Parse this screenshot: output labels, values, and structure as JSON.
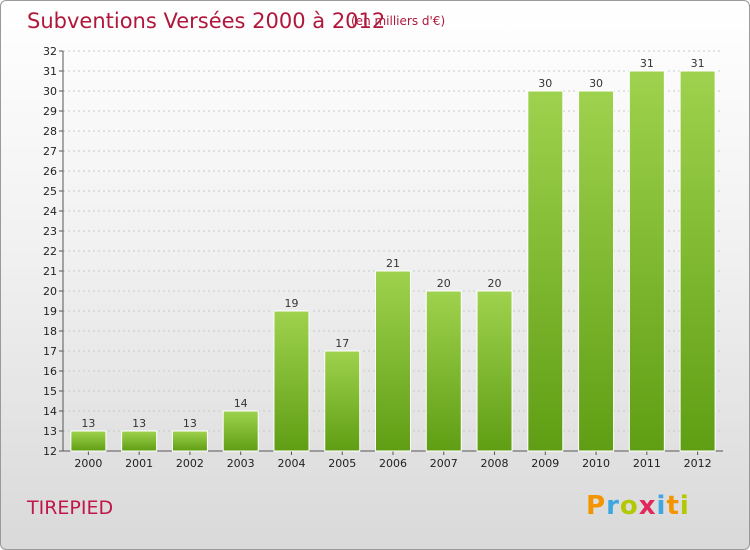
{
  "page": {
    "title": "Subventions Versées 2000 à 2012",
    "units": "(en milliers d'€)",
    "commune": "TIREPIED",
    "brand": [
      "P",
      "r",
      "o",
      "x",
      "i",
      "t",
      "i"
    ]
  },
  "colors": {
    "title": "#b0173a",
    "bar_top": "#9fd24e",
    "bar_bottom": "#5f9e14",
    "grid": "#c8c8c8"
  },
  "chart_data": {
    "type": "bar",
    "title": "Subventions Versées 2000 à 2012",
    "subtitle": "(en milliers d'€)",
    "xlabel": "",
    "ylabel": "",
    "categories": [
      "2000",
      "2001",
      "2002",
      "2003",
      "2004",
      "2005",
      "2006",
      "2007",
      "2008",
      "2009",
      "2010",
      "2011",
      "2012"
    ],
    "values": [
      13,
      13,
      13,
      14,
      19,
      17,
      21,
      20,
      20,
      30,
      30,
      31,
      31
    ],
    "ylim": [
      12,
      32
    ],
    "yticks": [
      12,
      13,
      14,
      15,
      16,
      17,
      18,
      19,
      20,
      21,
      22,
      23,
      24,
      25,
      26,
      27,
      28,
      29,
      30,
      31,
      32
    ],
    "grid": true,
    "data_labels": true
  }
}
